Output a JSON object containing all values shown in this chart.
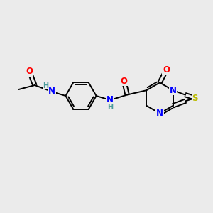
{
  "background_color": "#ebebeb",
  "bond_color": "#000000",
  "atom_colors": {
    "O": "#ff0000",
    "N": "#0000ff",
    "S": "#bbbb00",
    "H": "#4a9a9a",
    "C": "#000000"
  },
  "figsize": [
    3.0,
    3.0
  ],
  "dpi": 100
}
